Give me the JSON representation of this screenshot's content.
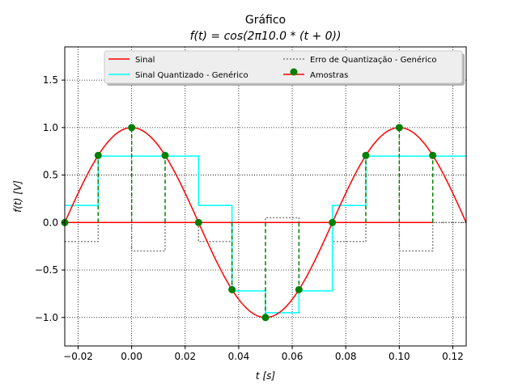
{
  "chart_data": {
    "type": "line",
    "title": "Gráfico",
    "subtitle": "f(t) = cos(2π10.0 * (t + 0))",
    "xlabel": "t [s]",
    "ylabel": "f(t) [V]",
    "xlim": [
      -0.025,
      0.125
    ],
    "ylim": [
      -1.3,
      1.85
    ],
    "xticks": [
      -0.02,
      0.0,
      0.02,
      0.04,
      0.06,
      0.08,
      0.1,
      0.12
    ],
    "xtick_labels": [
      "−0.02",
      "0.00",
      "0.02",
      "0.04",
      "0.06",
      "0.08",
      "0.10",
      "0.12"
    ],
    "yticks": [
      -1.0,
      -0.5,
      0.0,
      0.5,
      1.0,
      1.5
    ],
    "ytick_labels": [
      "−1.0",
      "−0.5",
      "0.0",
      "0.5",
      "1.0",
      "1.5"
    ],
    "grid": true,
    "legend_position": "top",
    "signal": {
      "name": "Sinal",
      "color": "#ff0000",
      "frequency": 10.0,
      "phase": 0
    },
    "sample_t": [
      -0.025,
      -0.0125,
      0.0,
      0.0125,
      0.025,
      0.0375,
      0.05,
      0.0625,
      0.075,
      0.0875,
      0.1,
      0.1125
    ],
    "samples": {
      "name": "Amostras",
      "color": "#008000",
      "stem_color": "#008000",
      "baseline_color": "#ff0000",
      "values": [
        0.0,
        0.707,
        1.0,
        0.707,
        0.0,
        -0.707,
        -1.0,
        -0.707,
        0.0,
        0.707,
        1.0,
        0.707
      ]
    },
    "quantized": {
      "name": "Sinal Quantizado - Genérico",
      "color": "#00ffff",
      "values": [
        0.18,
        0.7,
        0.7,
        0.7,
        0.18,
        -0.72,
        -0.95,
        -0.72,
        0.18,
        0.7,
        0.7,
        0.7
      ]
    },
    "error": {
      "name": "Erro de Quantização - Genérico",
      "color": "#808080",
      "values": [
        -0.2,
        0.0,
        -0.3,
        0.0,
        -0.2,
        0.0,
        0.05,
        0.0,
        -0.2,
        0.0,
        -0.3,
        0.0
      ]
    }
  }
}
